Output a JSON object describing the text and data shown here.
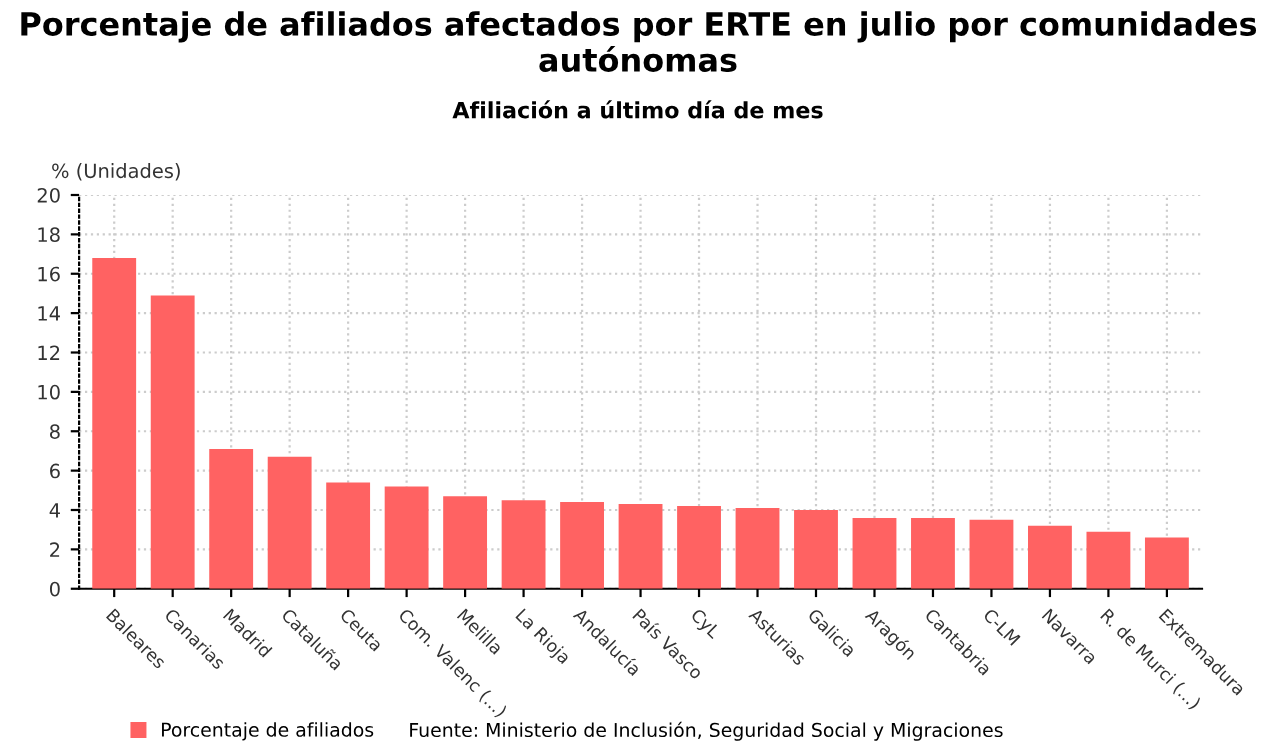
{
  "chart_data": {
    "type": "bar",
    "title": "Porcentaje de afiliados afectados por ERTE en julio por comunidades autónomas",
    "subtitle": "Afiliación a último día de mes",
    "ylabel": "% (Unidades)",
    "categories": [
      "Baleares",
      "Canarias",
      "Madrid",
      "Cataluña",
      "Ceuta",
      "Com. Valenc (...)",
      "Melilla",
      "La Rioja",
      "Andalucía",
      "País Vasco",
      "CyL",
      "Asturias",
      "Galicia",
      "Aragón",
      "Cantabria",
      "C-LM",
      "Navarra",
      "R. de Murci (...)",
      "Extremadura"
    ],
    "series": [
      {
        "name": "Porcentaje de afiliados",
        "color": "#ff6262",
        "values": [
          16.8,
          14.9,
          7.1,
          6.7,
          5.4,
          5.2,
          4.7,
          4.5,
          4.4,
          4.3,
          4.2,
          4.1,
          4.0,
          3.6,
          3.6,
          3.5,
          3.2,
          2.9,
          2.6
        ]
      }
    ],
    "ylim": [
      0,
      20
    ],
    "yticks": [
      0,
      2,
      4,
      6,
      8,
      10,
      12,
      14,
      16,
      18,
      20
    ],
    "grid": true,
    "legend": "bottom",
    "annotations": [
      "Fuente: Ministerio de Inclusión, Seguridad Social y Migraciones"
    ]
  }
}
